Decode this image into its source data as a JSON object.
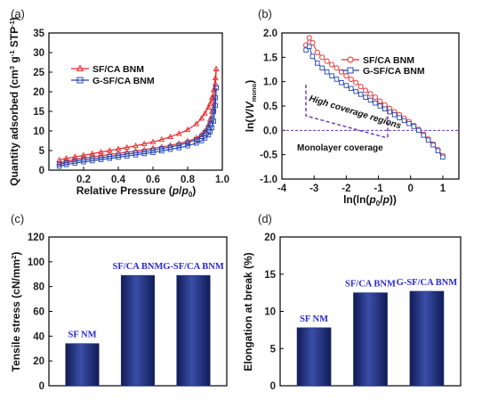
{
  "chart_data": [
    {
      "panel": "(a)",
      "type": "line",
      "xlabel": "Relative Pressure (p/p0)",
      "ylabel": "Quantity adsorbed (cm³ g⁻¹ STP⁻¹)",
      "xlim": [
        0.0,
        1.0
      ],
      "ylim": [
        0,
        35
      ],
      "xticks": [
        "0.2",
        "0.4",
        "0.6",
        "0.8",
        "1.0"
      ],
      "yticks": [
        "0",
        "5",
        "10",
        "15",
        "20",
        "25",
        "30",
        "35"
      ],
      "legend_position": "upper-left",
      "colors": {
        "SF/CA BNM": "#e8292b",
        "G-SF/CA BNM": "#2745b0"
      },
      "series": [
        {
          "name": "SF/CA BNM",
          "marker": "triangle",
          "x": [
            0.06,
            0.1,
            0.15,
            0.2,
            0.25,
            0.3,
            0.35,
            0.4,
            0.45,
            0.5,
            0.55,
            0.6,
            0.65,
            0.7,
            0.75,
            0.8,
            0.85,
            0.88,
            0.9,
            0.92,
            0.93,
            0.94,
            0.95,
            0.96,
            0.965
          ],
          "y": [
            1.8,
            2.3,
            2.7,
            3.1,
            3.4,
            3.7,
            4.0,
            4.3,
            4.6,
            4.9,
            5.2,
            5.6,
            5.9,
            6.3,
            6.8,
            7.4,
            8.2,
            9.0,
            10.0,
            11.5,
            13.0,
            15.0,
            18.0,
            22.0,
            25.8
          ],
          "desorption_y": [
            2.6,
            3.0,
            3.4,
            3.8,
            4.2,
            4.6,
            5.0,
            5.4,
            5.8,
            6.2,
            6.7,
            7.2,
            7.8,
            8.5,
            9.3,
            10.3,
            11.8,
            13.2,
            14.5,
            16.0,
            17.0,
            18.5,
            20.5,
            23.5,
            25.8
          ]
        },
        {
          "name": "G-SF/CA BNM",
          "marker": "square",
          "x": [
            0.06,
            0.1,
            0.15,
            0.2,
            0.25,
            0.3,
            0.35,
            0.4,
            0.45,
            0.5,
            0.55,
            0.6,
            0.65,
            0.7,
            0.75,
            0.8,
            0.85,
            0.88,
            0.9,
            0.92,
            0.93,
            0.94,
            0.95,
            0.96,
            0.965
          ],
          "y": [
            1.0,
            1.4,
            1.8,
            2.1,
            2.4,
            2.7,
            3.0,
            3.3,
            3.6,
            3.9,
            4.2,
            4.5,
            4.9,
            5.3,
            5.7,
            6.2,
            6.9,
            7.5,
            8.2,
            9.0,
            9.8,
            10.8,
            12.5,
            16.5,
            21.0
          ],
          "desorption_y": [
            1.5,
            1.9,
            2.3,
            2.6,
            2.9,
            3.2,
            3.5,
            3.8,
            4.1,
            4.4,
            4.7,
            5.1,
            5.5,
            5.9,
            6.4,
            7.0,
            7.8,
            8.6,
            9.6,
            10.8,
            11.8,
            13.0,
            15.0,
            18.5,
            21.0
          ]
        }
      ]
    },
    {
      "panel": "(b)",
      "type": "scatter",
      "xlabel": "ln(ln(p0/p))",
      "ylabel": "ln(V/Vmono)",
      "xlim": [
        -4,
        1.5
      ],
      "ylim": [
        -1.0,
        2.0
      ],
      "xticks": [
        "-4",
        "-3",
        "-2",
        "-1",
        "0",
        "1"
      ],
      "yticks": [
        "-1.0",
        "-0.5",
        "0.0",
        "0.5",
        "1.0",
        "1.5",
        "2.0"
      ],
      "legend_position": "upper-right",
      "colors": {
        "SF/CA BNM": "#e8292b",
        "G-SF/CA BNM": "#2745b0"
      },
      "reference_line_y": 0.0,
      "annotations": [
        "High coverage regions",
        "Monolayer coverage"
      ],
      "series": [
        {
          "name": "SF/CA BNM",
          "marker": "open-circle",
          "x": [
            -3.25,
            -3.15,
            -3.05,
            -2.9,
            -2.75,
            -2.6,
            -2.45,
            -2.3,
            -2.15,
            -2.0,
            -1.85,
            -1.7,
            -1.55,
            -1.4,
            -1.25,
            -1.1,
            -0.95,
            -0.8,
            -0.65,
            -0.5,
            -0.35,
            -0.2,
            -0.05,
            0.1,
            0.25,
            0.4,
            0.55,
            0.7,
            0.85,
            1.0
          ],
          "y": [
            1.75,
            1.9,
            1.8,
            1.6,
            1.5,
            1.42,
            1.35,
            1.28,
            1.2,
            1.12,
            1.05,
            0.98,
            0.9,
            0.82,
            0.75,
            0.68,
            0.6,
            0.52,
            0.45,
            0.38,
            0.32,
            0.25,
            0.18,
            0.1,
            0.02,
            -0.08,
            -0.18,
            -0.28,
            -0.4,
            -0.52
          ]
        },
        {
          "name": "G-SF/CA BNM",
          "marker": "open-square",
          "x": [
            -3.25,
            -3.15,
            -3.05,
            -2.9,
            -2.75,
            -2.6,
            -2.45,
            -2.3,
            -2.15,
            -2.0,
            -1.85,
            -1.7,
            -1.55,
            -1.4,
            -1.25,
            -1.1,
            -0.95,
            -0.8,
            -0.65,
            -0.5,
            -0.35,
            -0.2,
            -0.05,
            0.1,
            0.25,
            0.4,
            0.55,
            0.7,
            0.85,
            1.0
          ],
          "y": [
            1.65,
            1.72,
            1.52,
            1.38,
            1.28,
            1.2,
            1.12,
            1.05,
            0.98,
            0.92,
            0.86,
            0.8,
            0.74,
            0.68,
            0.62,
            0.56,
            0.5,
            0.44,
            0.38,
            0.32,
            0.26,
            0.2,
            0.14,
            0.08,
            0.0,
            -0.1,
            -0.2,
            -0.3,
            -0.42,
            -0.55
          ]
        }
      ]
    },
    {
      "panel": "(c)",
      "type": "bar",
      "ylabel": "Tensile stress (cN/mm²)",
      "ylim": [
        0,
        120
      ],
      "yticks": [
        "0",
        "20",
        "40",
        "60",
        "80",
        "100",
        "120"
      ],
      "bar_color": "#1f2f7a",
      "label_color": "#2a2acc",
      "categories": [
        "SF NM",
        "SF/CA BNM",
        "G-SF/CA BNM"
      ],
      "values": [
        34,
        89,
        89
      ]
    },
    {
      "panel": "(d)",
      "type": "bar",
      "ylabel": "Elongation at break (%)",
      "ylim": [
        0,
        20
      ],
      "yticks": [
        "0",
        "5",
        "10",
        "15",
        "20"
      ],
      "bar_color": "#1f2f7a",
      "label_color": "#2a2acc",
      "categories": [
        "SF NM",
        "SF/CA BNM",
        "G-SF/CA BNM"
      ],
      "values": [
        7.8,
        12.5,
        12.7
      ]
    }
  ]
}
